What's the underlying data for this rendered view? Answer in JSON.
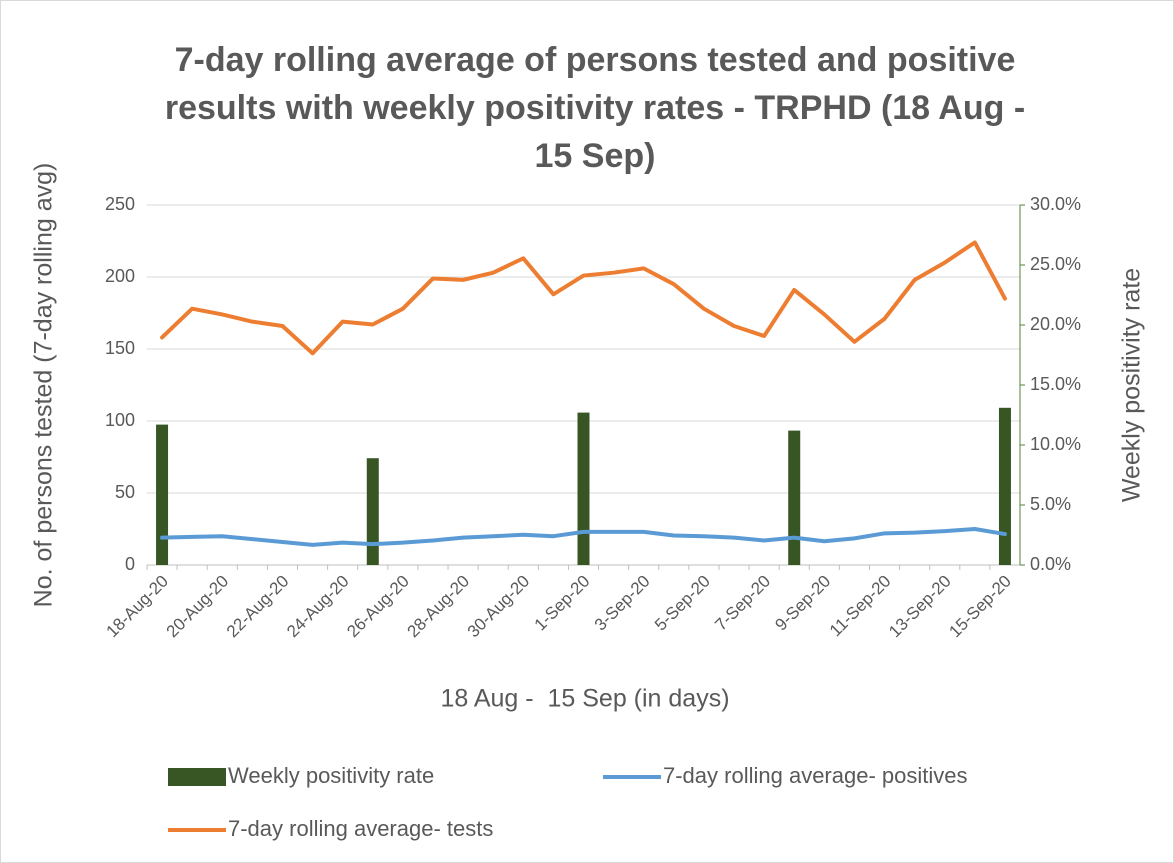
{
  "chart_data": {
    "type": "bar-line",
    "title": "7-day rolling average of persons tested and positive results with weekly positivity rates - TRPHD (18 Aug - 15 Sep)",
    "x_label": "18 Aug -  15 Sep (in days)",
    "y_label": "No. of persons tested (7-day rolling avg)",
    "y2_label": "Weekly positivity rate",
    "categories": [
      "18-Aug-20",
      null,
      "20-Aug-20",
      null,
      "22-Aug-20",
      null,
      "24-Aug-20",
      null,
      "26-Aug-20",
      null,
      "28-Aug-20",
      null,
      "30-Aug-20",
      null,
      "1-Sep-20",
      null,
      "3-Sep-20",
      null,
      "5-Sep-20",
      null,
      "7-Sep-20",
      null,
      "9-Sep-20",
      null,
      "11-Sep-20",
      null,
      "13-Sep-20",
      null,
      "15-Sep-20"
    ],
    "series": [
      {
        "name": "Weekly positivity rate",
        "type": "bar",
        "axis": "y2",
        "color": "#375623",
        "values": [
          11.7,
          null,
          null,
          null,
          null,
          null,
          null,
          8.9,
          null,
          null,
          null,
          null,
          null,
          null,
          12.7,
          null,
          null,
          null,
          null,
          null,
          null,
          11.2,
          null,
          null,
          null,
          null,
          null,
          null,
          13.1
        ]
      },
      {
        "name": "7-day rolling average- positives",
        "type": "line",
        "color": "#5b9bd5",
        "values": [
          19,
          19.5,
          20,
          18,
          16,
          14,
          15.5,
          14.5,
          15.5,
          17,
          19,
          20,
          21,
          20,
          23,
          23,
          23,
          20.5,
          20,
          19,
          17,
          19,
          16.5,
          18.5,
          22,
          22.5,
          23.5,
          25,
          21.5
        ]
      },
      {
        "name": "7-day rolling average- tests",
        "type": "line",
        "color": "#ed7d31",
        "values": [
          158,
          178,
          174,
          169,
          166,
          147,
          169,
          167,
          178,
          199,
          198,
          203,
          213,
          188,
          201,
          203,
          206,
          195,
          178,
          166,
          159,
          191,
          174,
          155,
          171,
          198,
          210,
          224,
          185
        ]
      }
    ],
    "ylim": [
      0,
      250
    ],
    "yticks": [
      0,
      50,
      100,
      150,
      200,
      250
    ],
    "y2lim": [
      0,
      30
    ],
    "y2ticks": [
      {
        "value": 0,
        "label": "0.0%"
      },
      {
        "value": 5,
        "label": "5.0%"
      },
      {
        "value": 10,
        "label": "10.0%"
      },
      {
        "value": 15,
        "label": "15.0%"
      },
      {
        "value": 20,
        "label": "20.0%"
      },
      {
        "value": 25,
        "label": "25.0%"
      },
      {
        "value": 30,
        "label": "30.0%"
      }
    ],
    "grid": true,
    "legend": "bottom"
  }
}
